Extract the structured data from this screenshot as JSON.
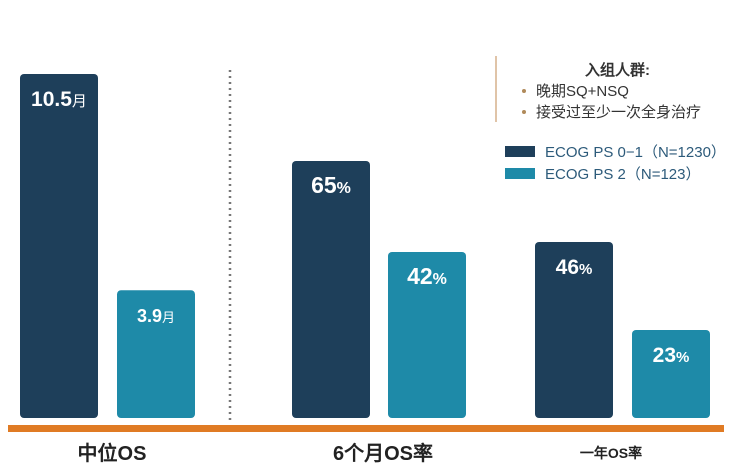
{
  "chart_data": {
    "type": "bar",
    "groups": [
      {
        "category": "中位OS",
        "values": [
          10.5,
          3.9
        ],
        "labels": [
          "10.5",
          "3.9"
        ],
        "unit": "月",
        "max": 10.5
      },
      {
        "category": "6个月OS率",
        "values": [
          65,
          42
        ],
        "labels": [
          "65",
          "42"
        ],
        "unit": "%",
        "max": 100
      },
      {
        "category": "一年OS率",
        "values": [
          46,
          23
        ],
        "labels": [
          "46",
          "23"
        ],
        "unit": "%",
        "max": 100
      }
    ],
    "series": [
      {
        "name": "ECOG PS 0−1（N=1230）",
        "color": "#1e3f5a"
      },
      {
        "name": "ECOG PS 2（N=123）",
        "color": "#1e8aa8"
      }
    ],
    "note": {
      "title": "入组人群:",
      "items": [
        "晚期SQ+NSQ",
        "接受过至少一次全身治疗"
      ]
    },
    "baseline_color": "#e07b24",
    "divider_color": "#777777"
  }
}
